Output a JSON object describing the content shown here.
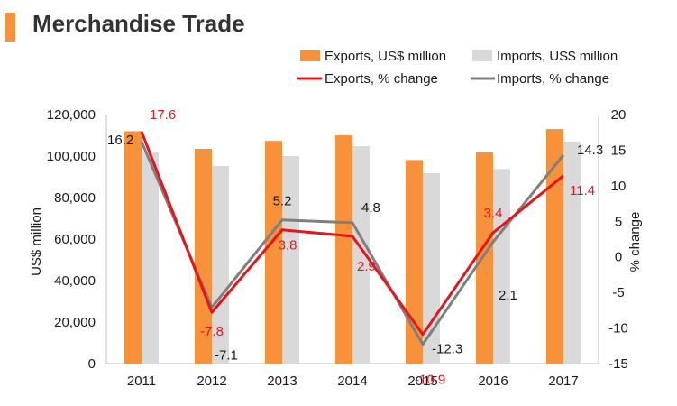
{
  "page": {
    "title": "Merchandise Trade"
  },
  "colors": {
    "exports_bar": "#f7923a",
    "imports_bar": "#d9d9d9",
    "exports_line": "#e8141b",
    "imports_line": "#7f7f7f",
    "exports_label": "#e8141b",
    "imports_label": "#1a1a1a",
    "title_accent": "#f7923a"
  },
  "chart_data": {
    "type": "bar",
    "categories": [
      "2011",
      "2012",
      "2013",
      "2014",
      "2015",
      "2016",
      "2017"
    ],
    "series": [
      {
        "name": "Exports, US$ million",
        "type": "bar",
        "axis": "left",
        "values": [
          112000,
          103500,
          107300,
          110000,
          98100,
          101800,
          113000
        ]
      },
      {
        "name": "Imports, US$ million",
        "type": "bar",
        "axis": "left",
        "values": [
          102000,
          95200,
          100000,
          104700,
          91800,
          93800,
          107000
        ]
      },
      {
        "name": "Exports, % change",
        "type": "line",
        "axis": "right",
        "values": [
          17.6,
          -7.8,
          3.8,
          2.9,
          -10.9,
          3.4,
          11.4
        ]
      },
      {
        "name": "Imports, % change",
        "type": "line",
        "axis": "right",
        "values": [
          16.2,
          -7.1,
          5.2,
          4.8,
          -12.3,
          2.1,
          14.3
        ]
      }
    ],
    "data_labels": {
      "exports_pct": [
        "17.6",
        "-7.8",
        "3.8",
        "2.9",
        "-10.9",
        "3.4",
        "11.4"
      ],
      "imports_pct": [
        "16.2",
        "-7.1",
        "5.2",
        "4.8",
        "-12.3",
        "2.1",
        "14.3"
      ]
    },
    "ylabel": "US$ million",
    "y2label": "% change",
    "ylim": [
      0,
      120000
    ],
    "y2lim": [
      -15,
      20
    ],
    "yticks": [
      "0",
      "20,000",
      "40,000",
      "60,000",
      "80,000",
      "100,000",
      "120,000"
    ],
    "y2ticks": [
      "-15",
      "-10",
      "-5",
      "0",
      "5",
      "10",
      "15",
      "20"
    ],
    "grid": false,
    "legend_position": "top-right"
  }
}
